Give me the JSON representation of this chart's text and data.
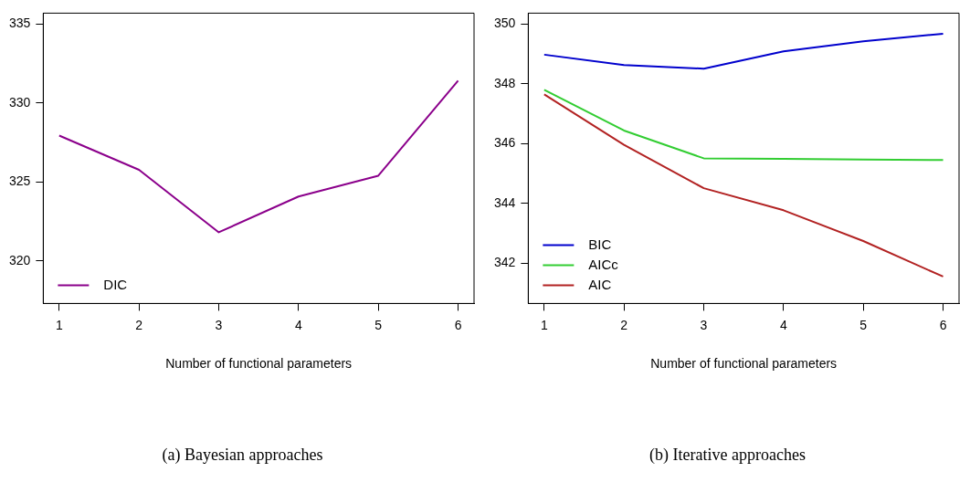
{
  "chart_data": [
    {
      "type": "line",
      "xlabel": "Number of functional parameters",
      "annotations": [
        "(a) Bayesian approaches"
      ],
      "x": [
        1,
        2,
        3,
        4,
        5,
        6
      ],
      "xlim": [
        0.8,
        6.2
      ],
      "xticks": [
        1,
        2,
        3,
        4,
        5,
        6
      ],
      "ylim": [
        317.3,
        335.7
      ],
      "yticks": [
        320,
        325,
        330,
        335
      ],
      "grid": false,
      "legend": "bottom left",
      "series": [
        {
          "name": "DIC",
          "color": "#8b008b",
          "values": [
            327.94,
            325.77,
            321.81,
            324.08,
            325.4,
            331.42
          ]
        }
      ]
    },
    {
      "type": "line",
      "xlabel": "Number of functional parameters",
      "annotations": [
        "(b) Iterative approaches"
      ],
      "x": [
        1,
        2,
        3,
        4,
        5,
        6
      ],
      "xlim": [
        0.8,
        6.2
      ],
      "xticks": [
        1,
        2,
        3,
        4,
        5,
        6
      ],
      "ylim": [
        340.65,
        350.37
      ],
      "yticks": [
        342,
        344,
        346,
        348,
        350
      ],
      "grid": false,
      "legend": "bottom left",
      "series": [
        {
          "name": "BIC",
          "color": "#0000cd",
          "values": [
            348.98,
            348.63,
            348.51,
            349.09,
            349.43,
            349.68
          ]
        },
        {
          "name": "AICc",
          "color": "#32cd32",
          "values": [
            347.8,
            346.44,
            345.51,
            345.49,
            345.47,
            345.45
          ]
        },
        {
          "name": "AIC",
          "color": "#b22222",
          "values": [
            347.65,
            345.96,
            344.51,
            343.77,
            342.74,
            341.55
          ]
        }
      ]
    }
  ]
}
